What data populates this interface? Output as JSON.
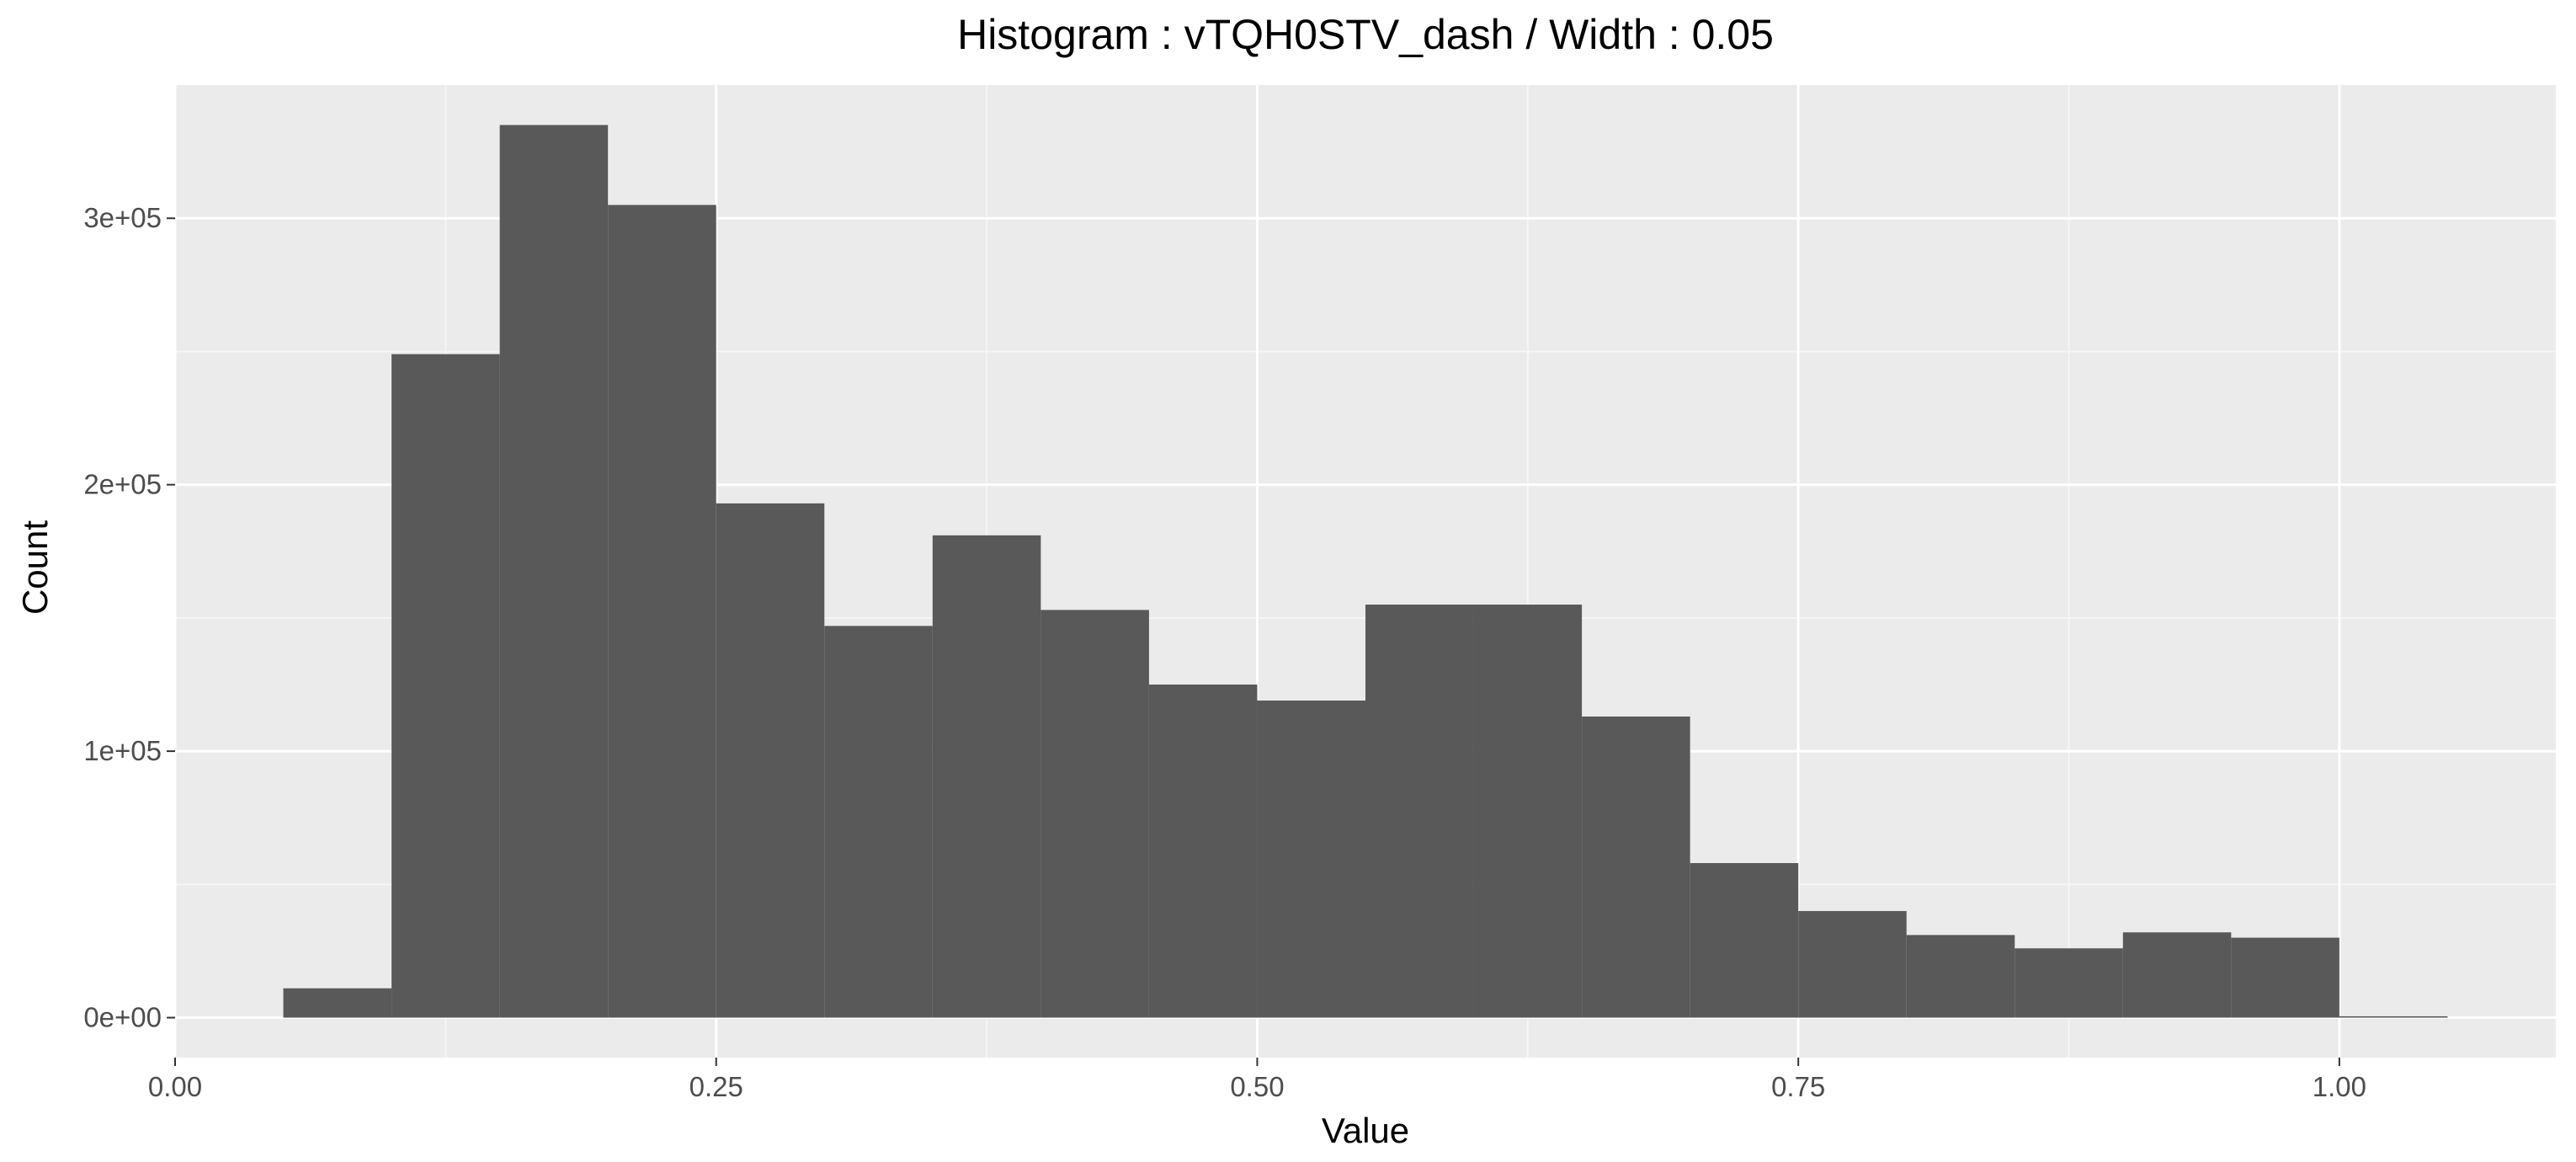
{
  "chart_data": {
    "type": "bar",
    "title": "Histogram : vTQH0STV_dash / Width : 0.05",
    "xlabel": "Value",
    "ylabel": "Count",
    "bin_width": 0.05,
    "bins": [
      {
        "x0": 0.05,
        "x1": 0.1,
        "count": 11000
      },
      {
        "x0": 0.1,
        "x1": 0.15,
        "count": 249000
      },
      {
        "x0": 0.15,
        "x1": 0.2,
        "count": 335000
      },
      {
        "x0": 0.2,
        "x1": 0.25,
        "count": 305000
      },
      {
        "x0": 0.25,
        "x1": 0.3,
        "count": 193000
      },
      {
        "x0": 0.3,
        "x1": 0.35,
        "count": 147000
      },
      {
        "x0": 0.35,
        "x1": 0.4,
        "count": 181000
      },
      {
        "x0": 0.4,
        "x1": 0.45,
        "count": 153000
      },
      {
        "x0": 0.45,
        "x1": 0.5,
        "count": 125000
      },
      {
        "x0": 0.5,
        "x1": 0.55,
        "count": 119000
      },
      {
        "x0": 0.55,
        "x1": 0.6,
        "count": 155000
      },
      {
        "x0": 0.6,
        "x1": 0.65,
        "count": 155000
      },
      {
        "x0": 0.65,
        "x1": 0.7,
        "count": 113000
      },
      {
        "x0": 0.7,
        "x1": 0.75,
        "count": 58000
      },
      {
        "x0": 0.75,
        "x1": 0.8,
        "count": 40000
      },
      {
        "x0": 0.8,
        "x1": 0.85,
        "count": 31000
      },
      {
        "x0": 0.85,
        "x1": 0.9,
        "count": 26000
      },
      {
        "x0": 0.9,
        "x1": 0.95,
        "count": 32000
      },
      {
        "x0": 0.95,
        "x1": 1.0,
        "count": 30000
      },
      {
        "x0": 1.0,
        "x1": 1.05,
        "count": 500
      }
    ],
    "xlim": [
      0.0,
      1.1
    ],
    "ylim": [
      -15000,
      350000
    ],
    "x_ticks": [
      0.0,
      0.25,
      0.5,
      0.75,
      1.0
    ],
    "x_tick_labels": [
      "0.00",
      "0.25",
      "0.50",
      "0.75",
      "1.00"
    ],
    "y_ticks": [
      0,
      100000,
      200000,
      300000
    ],
    "y_tick_labels": [
      "0e+00",
      "1e+05",
      "2e+05",
      "3e+05"
    ],
    "grid": true,
    "legend": "none",
    "colors": {
      "bar": "#595959",
      "panel": "#ebebeb",
      "grid_major": "#ffffff",
      "grid_minor": "#f5f5f5",
      "tick_text": "#4d4d4d",
      "tick_mark": "#333333"
    }
  }
}
